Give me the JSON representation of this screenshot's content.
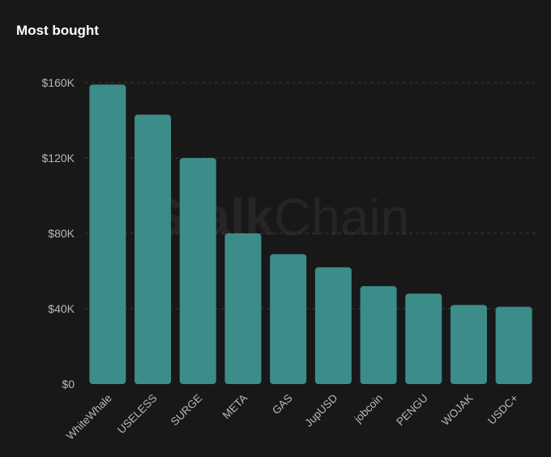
{
  "card": {
    "title": "Most bought"
  },
  "watermark": {
    "bold_part": "Stalk",
    "light_part": "Chain"
  },
  "colors": {
    "background": "#181818",
    "bar": "#3c8c8a",
    "text": "#b8b8b8",
    "title": "#ffffff",
    "grid": "#3a3a3a"
  },
  "chart_data": {
    "type": "bar",
    "title": "Most bought",
    "xlabel": "",
    "ylabel": "",
    "categories": [
      "WhiteWhale",
      "USELESS",
      "SURGE",
      "META",
      "GAS",
      "JupUSD",
      "jobcoin",
      "PENGU",
      "WOJAK",
      "USDC+"
    ],
    "values": [
      159000,
      143000,
      120000,
      80000,
      69000,
      62000,
      52000,
      48000,
      42000,
      41000
    ],
    "ylim": [
      0,
      160000
    ],
    "yticks": [
      0,
      40000,
      80000,
      120000,
      160000
    ],
    "ytick_labels": [
      "$0",
      "$40K",
      "$80K",
      "$120K",
      "$160K"
    ],
    "grid": true,
    "legend": "none"
  }
}
